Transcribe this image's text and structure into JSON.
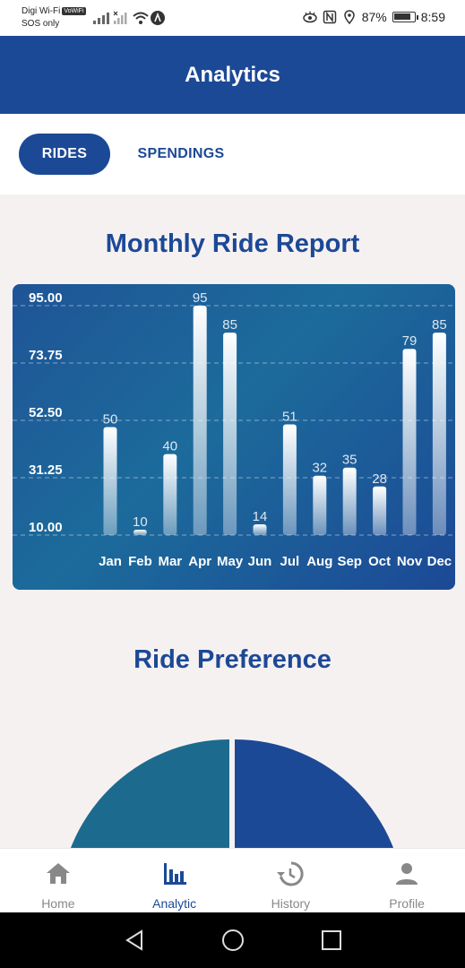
{
  "status_bar": {
    "carrier_line1": "Digi Wi-Fi",
    "carrier_badge": "VoWiFi",
    "carrier_line2": "SOS only",
    "battery": "87%",
    "battery_level": 0.87,
    "time": "8:59"
  },
  "header": {
    "title": "Analytics"
  },
  "tabs": [
    {
      "label": "RIDES",
      "active": true
    },
    {
      "label": "SPENDINGS",
      "active": false
    }
  ],
  "monthly_title": "Monthly Ride Report",
  "preference_title": "Ride Preference",
  "chart_data": {
    "type": "bar",
    "title": "Monthly Ride Report",
    "categories": [
      "Jan",
      "Feb",
      "Mar",
      "Apr",
      "May",
      "Jun",
      "Jul",
      "Aug",
      "Sep",
      "Oct",
      "Nov",
      "Dec"
    ],
    "values": [
      50,
      10,
      40,
      95,
      85,
      14,
      51,
      32,
      35,
      28,
      79,
      85
    ],
    "y_ticks": [
      "95.00",
      "73.75",
      "52.50",
      "31.25",
      "10.00"
    ],
    "y_tick_values": [
      95,
      73.75,
      52.5,
      31.25,
      10
    ],
    "ylim": [
      10,
      95
    ],
    "grid": true,
    "xlabel": "",
    "ylabel": ""
  },
  "preference_chart": {
    "type": "pie",
    "colors": [
      "#1c6b8e",
      "#1c4996"
    ]
  },
  "bottom_nav": [
    {
      "label": "Home",
      "icon": "home-icon",
      "active": false
    },
    {
      "label": "Analytic",
      "icon": "bar-chart-icon",
      "active": true
    },
    {
      "label": "History",
      "icon": "history-icon",
      "active": false
    },
    {
      "label": "Profile",
      "icon": "person-icon",
      "active": false
    }
  ],
  "colors": {
    "primary": "#1c4996",
    "teal": "#1c6b8e",
    "background": "#f6f1f1"
  }
}
